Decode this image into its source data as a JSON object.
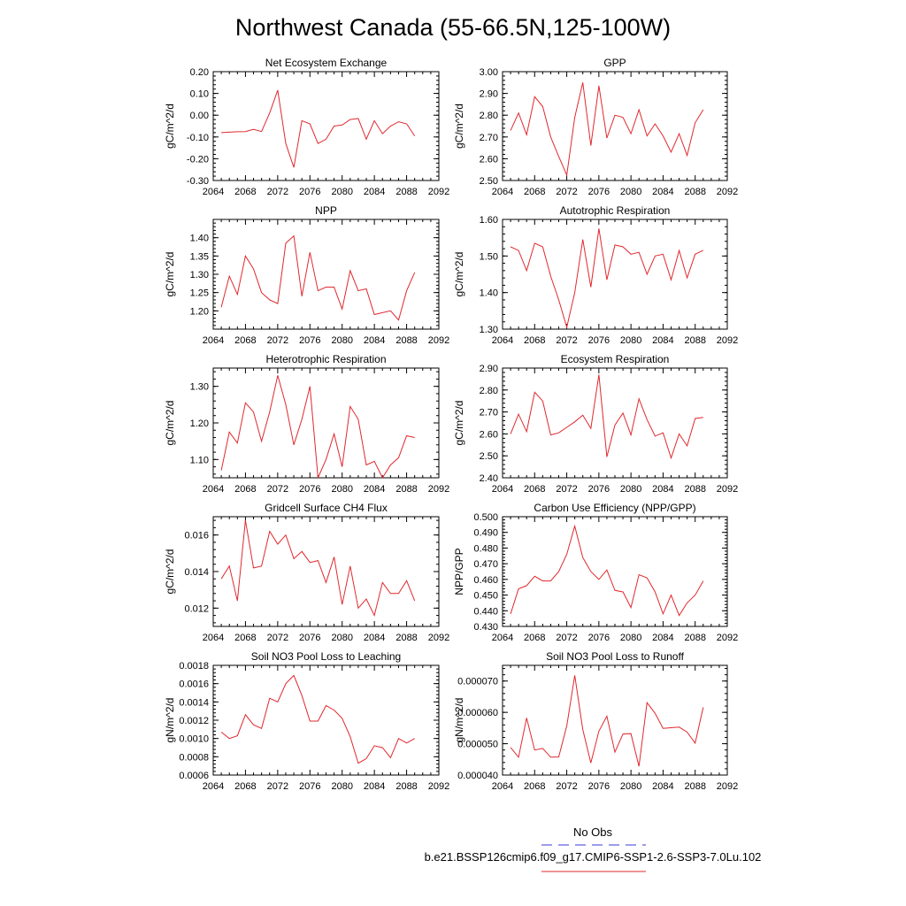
{
  "figure": {
    "title": "Northwest Canada (55-66.5N,125-100W)",
    "legend": {
      "obs_label": "No Obs",
      "obs_color": "#3a3adb",
      "model_label": "b.e21.BSSP126cmip6.f09_g17.CMIP6-SSP1-2.6-SSP3-7.0Lu.102",
      "model_color": "#e0282e"
    }
  },
  "chart_data": [
    {
      "type": "line",
      "title": "Net Ecosystem Exchange",
      "ylabel": "gC/m^2/d",
      "xlim": [
        2064,
        2092
      ],
      "xticks": [
        "2064",
        "2068",
        "2072",
        "2076",
        "2080",
        "2084",
        "2088",
        "2092"
      ],
      "ylim": [
        -0.3,
        0.2
      ],
      "yticks": [
        "-0.30",
        "-0.20",
        "-0.10",
        "0.00",
        "0.10",
        "0.20"
      ],
      "x": [
        2065,
        2066,
        2067,
        2068,
        2069,
        2070,
        2071,
        2072,
        2073,
        2074,
        2075,
        2076,
        2077,
        2078,
        2079,
        2080,
        2081,
        2082,
        2083,
        2084,
        2085,
        2086,
        2087,
        2088,
        2089
      ],
      "series": [
        {
          "color": "#e0282e",
          "values": [
            -0.08,
            -0.078,
            -0.076,
            -0.075,
            -0.065,
            -0.075,
            0.01,
            0.115,
            -0.13,
            -0.24,
            -0.025,
            -0.04,
            -0.13,
            -0.11,
            -0.05,
            -0.045,
            -0.02,
            -0.015,
            -0.11,
            -0.025,
            -0.085,
            -0.05,
            -0.03,
            -0.04,
            -0.095
          ]
        }
      ]
    },
    {
      "type": "line",
      "title": "GPP",
      "ylabel": "gC/m^2/d",
      "xlim": [
        2064,
        2092
      ],
      "xticks": [
        "2064",
        "2068",
        "2072",
        "2076",
        "2080",
        "2084",
        "2088",
        "2092"
      ],
      "ylim": [
        2.5,
        3.0
      ],
      "yticks": [
        "2.50",
        "2.60",
        "2.70",
        "2.80",
        "2.90",
        "3.00"
      ],
      "x": [
        2065,
        2066,
        2067,
        2068,
        2069,
        2070,
        2071,
        2072,
        2073,
        2074,
        2075,
        2076,
        2077,
        2078,
        2079,
        2080,
        2081,
        2082,
        2083,
        2084,
        2085,
        2086,
        2087,
        2088,
        2089
      ],
      "series": [
        {
          "color": "#e0282e",
          "values": [
            2.73,
            2.81,
            2.71,
            2.885,
            2.84,
            2.7,
            2.61,
            2.525,
            2.79,
            2.95,
            2.66,
            2.935,
            2.695,
            2.8,
            2.79,
            2.715,
            2.825,
            2.705,
            2.76,
            2.705,
            2.63,
            2.715,
            2.615,
            2.765,
            2.825
          ]
        }
      ]
    },
    {
      "type": "line",
      "title": "NPP",
      "ylabel": "gC/m^2/d",
      "xlim": [
        2064,
        2092
      ],
      "xticks": [
        "2064",
        "2068",
        "2072",
        "2076",
        "2080",
        "2084",
        "2088",
        "2092"
      ],
      "ylim": [
        1.15,
        1.45
      ],
      "yticks": [
        "1.20",
        "1.25",
        "1.30",
        "1.35",
        "1.40"
      ],
      "x": [
        2065,
        2066,
        2067,
        2068,
        2069,
        2070,
        2071,
        2072,
        2073,
        2074,
        2075,
        2076,
        2077,
        2078,
        2079,
        2080,
        2081,
        2082,
        2083,
        2084,
        2085,
        2086,
        2087,
        2088,
        2089
      ],
      "series": [
        {
          "color": "#e0282e",
          "values": [
            1.21,
            1.295,
            1.245,
            1.35,
            1.315,
            1.25,
            1.23,
            1.22,
            1.385,
            1.405,
            1.24,
            1.36,
            1.255,
            1.265,
            1.265,
            1.205,
            1.31,
            1.255,
            1.26,
            1.19,
            1.195,
            1.2,
            1.175,
            1.255,
            1.305
          ]
        }
      ]
    },
    {
      "type": "line",
      "title": "Autotrophic Respiration",
      "ylabel": "gC/m^2/d",
      "xlim": [
        2064,
        2092
      ],
      "xticks": [
        "2064",
        "2068",
        "2072",
        "2076",
        "2080",
        "2084",
        "2088",
        "2092"
      ],
      "ylim": [
        1.3,
        1.6
      ],
      "yticks": [
        "1.30",
        "1.40",
        "1.50",
        "1.60"
      ],
      "x": [
        2065,
        2066,
        2067,
        2068,
        2069,
        2070,
        2071,
        2072,
        2073,
        2074,
        2075,
        2076,
        2077,
        2078,
        2079,
        2080,
        2081,
        2082,
        2083,
        2084,
        2085,
        2086,
        2087,
        2088,
        2089
      ],
      "series": [
        {
          "color": "#e0282e",
          "values": [
            1.525,
            1.515,
            1.46,
            1.535,
            1.525,
            1.445,
            1.38,
            1.305,
            1.4,
            1.545,
            1.415,
            1.575,
            1.435,
            1.53,
            1.525,
            1.505,
            1.51,
            1.45,
            1.5,
            1.505,
            1.435,
            1.515,
            1.44,
            1.505,
            1.515
          ]
        }
      ]
    },
    {
      "type": "line",
      "title": "Heterotrophic Respiration",
      "ylabel": "gC/m^2/d",
      "xlim": [
        2064,
        2092
      ],
      "xticks": [
        "2064",
        "2068",
        "2072",
        "2076",
        "2080",
        "2084",
        "2088",
        "2092"
      ],
      "ylim": [
        1.05,
        1.35
      ],
      "yticks": [
        "1.10",
        "1.20",
        "1.30"
      ],
      "x": [
        2065,
        2066,
        2067,
        2068,
        2069,
        2070,
        2071,
        2072,
        2073,
        2074,
        2075,
        2076,
        2077,
        2078,
        2079,
        2080,
        2081,
        2082,
        2083,
        2084,
        2085,
        2086,
        2087,
        2088,
        2089
      ],
      "series": [
        {
          "color": "#e0282e",
          "values": [
            1.07,
            1.175,
            1.145,
            1.255,
            1.23,
            1.15,
            1.23,
            1.33,
            1.25,
            1.14,
            1.21,
            1.3,
            1.05,
            1.1,
            1.17,
            1.08,
            1.245,
            1.21,
            1.085,
            1.095,
            1.05,
            1.085,
            1.105,
            1.165,
            1.16
          ]
        }
      ]
    },
    {
      "type": "line",
      "title": "Ecosystem Respiration",
      "ylabel": "gC/m^2/d",
      "xlim": [
        2064,
        2092
      ],
      "xticks": [
        "2064",
        "2068",
        "2072",
        "2076",
        "2080",
        "2084",
        "2088",
        "2092"
      ],
      "ylim": [
        2.4,
        2.9
      ],
      "yticks": [
        "2.40",
        "2.50",
        "2.60",
        "2.70",
        "2.80",
        "2.90"
      ],
      "x": [
        2065,
        2066,
        2067,
        2068,
        2069,
        2070,
        2071,
        2072,
        2073,
        2074,
        2075,
        2076,
        2077,
        2078,
        2079,
        2080,
        2081,
        2082,
        2083,
        2084,
        2085,
        2086,
        2087,
        2088,
        2089
      ],
      "series": [
        {
          "color": "#e0282e",
          "values": [
            2.6,
            2.69,
            2.61,
            2.79,
            2.75,
            2.595,
            2.605,
            2.63,
            2.655,
            2.685,
            2.625,
            2.87,
            2.495,
            2.64,
            2.695,
            2.595,
            2.76,
            2.665,
            2.59,
            2.605,
            2.49,
            2.6,
            2.545,
            2.67,
            2.675
          ]
        }
      ]
    },
    {
      "type": "line",
      "title": "Gridcell Surface CH4 Flux",
      "ylabel": "gC/m^2/d",
      "xlim": [
        2064,
        2092
      ],
      "xticks": [
        "2064",
        "2068",
        "2072",
        "2076",
        "2080",
        "2084",
        "2088",
        "2092"
      ],
      "ylim": [
        0.011,
        0.017
      ],
      "yticks": [
        "0.012",
        "0.014",
        "0.016"
      ],
      "x": [
        2065,
        2066,
        2067,
        2068,
        2069,
        2070,
        2071,
        2072,
        2073,
        2074,
        2075,
        2076,
        2077,
        2078,
        2079,
        2080,
        2081,
        2082,
        2083,
        2084,
        2085,
        2086,
        2087,
        2088,
        2089
      ],
      "series": [
        {
          "color": "#e0282e",
          "values": [
            0.0136,
            0.0143,
            0.0124,
            0.0168,
            0.0142,
            0.0143,
            0.0162,
            0.0155,
            0.016,
            0.0147,
            0.0151,
            0.0145,
            0.0146,
            0.0134,
            0.0148,
            0.0122,
            0.0143,
            0.012,
            0.0125,
            0.0116,
            0.0134,
            0.0128,
            0.0128,
            0.0135,
            0.0124
          ]
        }
      ]
    },
    {
      "type": "line",
      "title": "Carbon Use Efficiency (NPP/GPP)",
      "ylabel": "NPP/GPP",
      "xlim": [
        2064,
        2092
      ],
      "xticks": [
        "2064",
        "2068",
        "2072",
        "2076",
        "2080",
        "2084",
        "2088",
        "2092"
      ],
      "ylim": [
        0.43,
        0.5
      ],
      "yticks": [
        "0.430",
        "0.440",
        "0.450",
        "0.460",
        "0.470",
        "0.480",
        "0.490",
        "0.500"
      ],
      "x": [
        2065,
        2066,
        2067,
        2068,
        2069,
        2070,
        2071,
        2072,
        2073,
        2074,
        2075,
        2076,
        2077,
        2078,
        2079,
        2080,
        2081,
        2082,
        2083,
        2084,
        2085,
        2086,
        2087,
        2088,
        2089
      ],
      "series": [
        {
          "color": "#e0282e",
          "values": [
            0.438,
            0.454,
            0.456,
            0.462,
            0.459,
            0.459,
            0.465,
            0.476,
            0.494,
            0.474,
            0.465,
            0.46,
            0.466,
            0.453,
            0.452,
            0.442,
            0.463,
            0.461,
            0.452,
            0.438,
            0.45,
            0.437,
            0.445,
            0.45,
            0.459
          ]
        }
      ]
    },
    {
      "type": "line",
      "title": "Soil NO3 Pool Loss to Leaching",
      "ylabel": "gN/m^2/d",
      "xlim": [
        2064,
        2092
      ],
      "xticks": [
        "2064",
        "2068",
        "2072",
        "2076",
        "2080",
        "2084",
        "2088",
        "2092"
      ],
      "ylim": [
        0.0006,
        0.0018
      ],
      "yticks": [
        "0.0006",
        "0.0008",
        "0.0010",
        "0.0012",
        "0.0014",
        "0.0016",
        "0.0018"
      ],
      "x": [
        2065,
        2066,
        2067,
        2068,
        2069,
        2070,
        2071,
        2072,
        2073,
        2074,
        2075,
        2076,
        2077,
        2078,
        2079,
        2080,
        2081,
        2082,
        2083,
        2084,
        2085,
        2086,
        2087,
        2088,
        2089
      ],
      "series": [
        {
          "color": "#e0282e",
          "values": [
            0.00107,
            0.001,
            0.00103,
            0.00126,
            0.00115,
            0.00111,
            0.00144,
            0.0014,
            0.0016,
            0.00169,
            0.00147,
            0.00119,
            0.00119,
            0.00136,
            0.00131,
            0.00122,
            0.00102,
            0.00073,
            0.00078,
            0.00092,
            0.0009,
            0.00079,
            0.001,
            0.00095,
            0.001
          ]
        }
      ]
    },
    {
      "type": "line",
      "title": "Soil NO3 Pool Loss to Runoff",
      "ylabel": "gN/m^2/d",
      "xlim": [
        2064,
        2092
      ],
      "xticks": [
        "2064",
        "2068",
        "2072",
        "2076",
        "2080",
        "2084",
        "2088",
        "2092"
      ],
      "ylim": [
        4e-05,
        7.5e-05
      ],
      "yticks": [
        "0.000040",
        "0.000050",
        "0.000060",
        "0.000070"
      ],
      "x": [
        2065,
        2066,
        2067,
        2068,
        2069,
        2070,
        2071,
        2072,
        2073,
        2074,
        2075,
        2076,
        2077,
        2078,
        2079,
        2080,
        2081,
        2082,
        2083,
        2084,
        2085,
        2086,
        2087,
        2088,
        2089
      ],
      "series": [
        {
          "color": "#e0282e",
          "values": [
            4.88e-05,
            4.57e-05,
            5.82e-05,
            4.8e-05,
            4.85e-05,
            4.57e-05,
            4.58e-05,
            5.57e-05,
            7.18e-05,
            5.45e-05,
            4.39e-05,
            5.4e-05,
            5.88e-05,
            4.73e-05,
            5.31e-05,
            5.32e-05,
            4.28e-05,
            6.31e-05,
            5.97e-05,
            5.49e-05,
            5.51e-05,
            5.53e-05,
            5.37e-05,
            5.02e-05,
            6.16e-05
          ]
        }
      ]
    }
  ]
}
